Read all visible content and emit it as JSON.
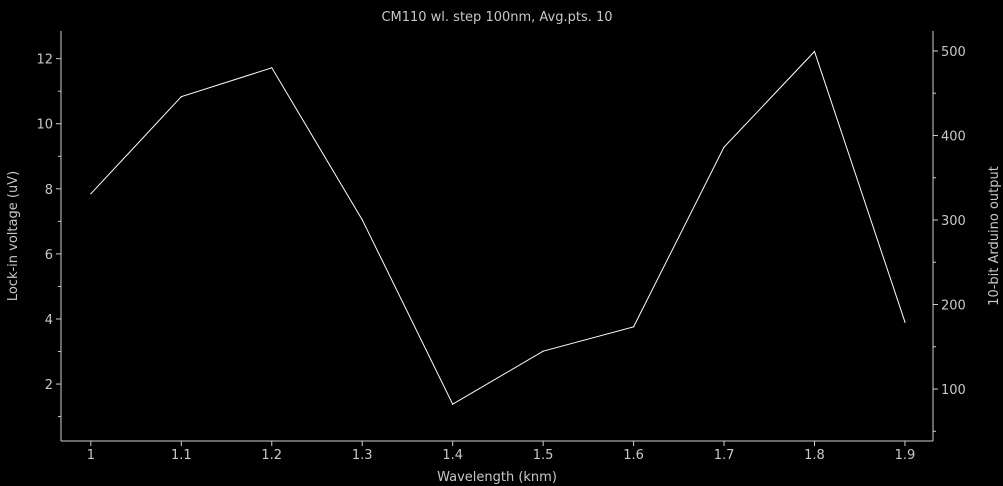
{
  "chart_data": {
    "type": "line",
    "title": "CM110 wl. step 100nm, Avg.pts. 10",
    "xlabel": "Wavelength (knm)",
    "ylabel": "Lock-in voltage (uV)",
    "y2label": "10-bit Arduino output",
    "xlim": [
      0.967,
      1.931
    ],
    "ylim": [
      0.25,
      12.85
    ],
    "y2lim": [
      38.5,
      523.6
    ],
    "x_ticks": [
      "1",
      "1.1",
      "1.2",
      "1.3",
      "1.4",
      "1.5",
      "1.6",
      "1.7",
      "1.8",
      "1.9"
    ],
    "y_ticks": [
      "2",
      "4",
      "6",
      "8",
      "10",
      "12"
    ],
    "y2_ticks": [
      "100",
      "200",
      "300",
      "400",
      "500"
    ],
    "grid": false,
    "series": [
      {
        "x": [
          1.0,
          1.1,
          1.2,
          1.3,
          1.4,
          1.5,
          1.6,
          1.7,
          1.8,
          1.9
        ],
        "values": [
          7.85,
          10.83,
          11.72,
          7.05,
          1.38,
          3.01,
          3.76,
          9.28,
          12.22,
          3.9
        ],
        "color": "#ffffff"
      }
    ]
  }
}
